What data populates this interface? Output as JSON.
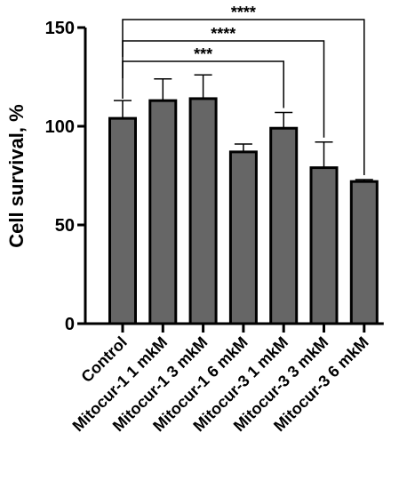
{
  "chart_data": {
    "type": "bar",
    "ylabel": "Cell survival, %",
    "ylim": [
      0,
      150
    ],
    "yticks": [
      0,
      50,
      100,
      150
    ],
    "categories": [
      "Control",
      "Mitocur-1 1 mkM",
      "Mitocur-1 3 mkM",
      "Mitocur-1 6 mkM",
      "Mitocur-3 1 mkM",
      "Mitocur-3 3 mkM",
      "Mitocur-3 6 mkM"
    ],
    "values": [
      104,
      113,
      114,
      87,
      99,
      79,
      72
    ],
    "errors": [
      9,
      11,
      12,
      4,
      8,
      13,
      1
    ],
    "bar_color": "#666666",
    "significance": [
      {
        "from": "Control",
        "to": "Mitocur-3 1 mkM",
        "label": "***"
      },
      {
        "from": "Control",
        "to": "Mitocur-3 3 mkM",
        "label": "****"
      },
      {
        "from": "Control",
        "to": "Mitocur-3 6 mkM",
        "label": "****"
      }
    ]
  }
}
